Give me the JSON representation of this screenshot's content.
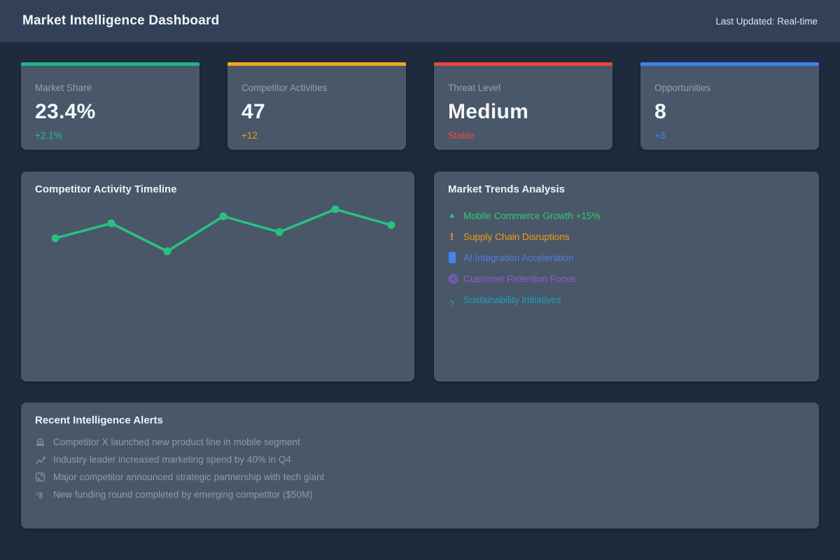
{
  "header": {
    "title": "Market Intelligence Dashboard",
    "last_updated": "Last Updated: Real-time"
  },
  "colors": {
    "page_bg": "#1f2a3d",
    "header_bg": "#334158",
    "card_bg": "#4a5769",
    "green": "#1db584",
    "orange": "#f39c12",
    "red": "#e74c3c",
    "blue": "#3b82f6"
  },
  "stat_cards": [
    {
      "label": "Market Share",
      "value": "23.4%",
      "delta": "+2.1%",
      "accent": "#1db584",
      "delta_color": "#27c281"
    },
    {
      "label": "Competitor Activities",
      "value": "47",
      "delta": "+12",
      "accent": "#f5a623",
      "delta_color": "#f39c12"
    },
    {
      "label": "Threat Level",
      "value": "Medium",
      "delta": "Stable",
      "accent": "#e8473f",
      "delta_color": "#e74c3c"
    },
    {
      "label": "Opportunities",
      "value": "8",
      "delta": "+3",
      "accent": "#3b82f6",
      "delta_color": "#3f83f8"
    }
  ],
  "chart_data": {
    "type": "line",
    "title": "Competitor Activity Timeline",
    "x": [
      1,
      2,
      3,
      4,
      5,
      6,
      7
    ],
    "values": [
      35,
      52,
      20,
      60,
      42,
      68,
      50
    ],
    "xlabel": "",
    "ylabel": "",
    "axes_visible": false,
    "grid": false,
    "legend": false,
    "line_color": "#27c281",
    "note": "unlabeled sparkline; values estimated from point heights"
  },
  "trends_panel": {
    "title": "Market Trends Analysis",
    "items": [
      {
        "icon": "up-triangle-icon",
        "label": "Mobile Commerce Growth +15%",
        "color": "#2ecc71"
      },
      {
        "icon": "exclamation-icon",
        "label": "Supply Chain Disruptions",
        "color": "#f39c12"
      },
      {
        "icon": "blue-block-icon",
        "label": "AI Integration Acceleration",
        "color": "#4a80e1",
        "icon_color": "#4285f4"
      },
      {
        "icon": "target-icon",
        "label": "Customer Retention Focus",
        "color": "#8a5fd4"
      },
      {
        "icon": "seedling-icon",
        "label": "Sustainability Initiatives",
        "color": "#1aa0ba"
      }
    ]
  },
  "alerts_panel": {
    "title": "Recent Intelligence Alerts",
    "icon_color": "#8494a8",
    "items": [
      {
        "icon": "beacon-icon",
        "text": "Competitor X launched new product line in mobile segment"
      },
      {
        "icon": "chart-up-icon",
        "text": "Industry leader increased marketing spend by 40% in Q4"
      },
      {
        "icon": "partnership-icon",
        "text": "Major competitor announced strategic partnership with tech giant"
      },
      {
        "icon": "funding-icon",
        "text": "New funding round completed by emerging competitor ($50M)"
      }
    ]
  }
}
